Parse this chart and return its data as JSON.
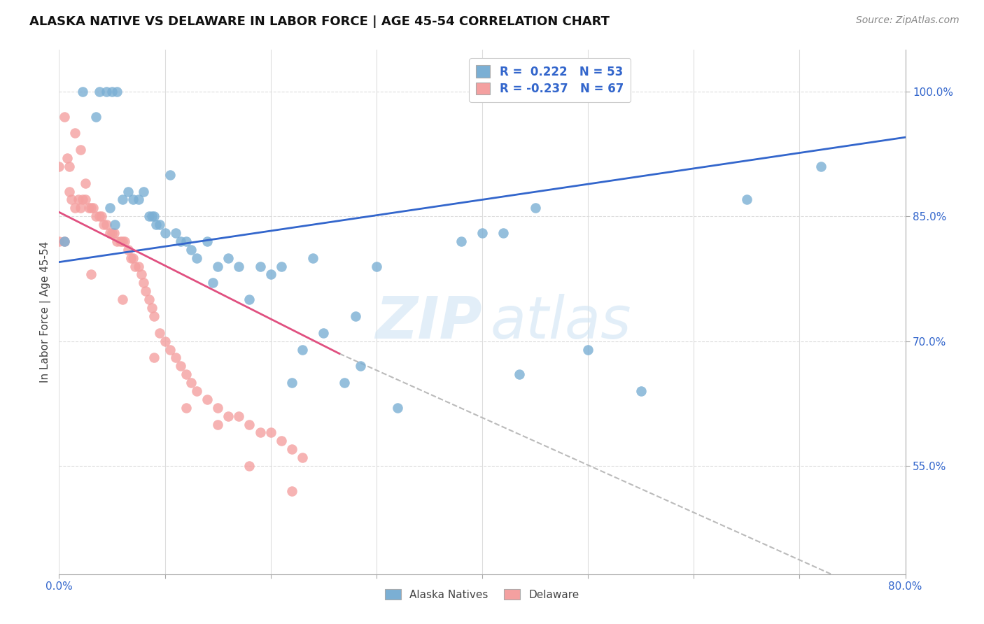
{
  "title": "ALASKA NATIVE VS DELAWARE IN LABOR FORCE | AGE 45-54 CORRELATION CHART",
  "source": "Source: ZipAtlas.com",
  "ylabel": "In Labor Force | Age 45-54",
  "xlim": [
    0.0,
    0.8
  ],
  "ylim": [
    0.42,
    1.05
  ],
  "xticks": [
    0.0,
    0.1,
    0.2,
    0.3,
    0.4,
    0.5,
    0.6,
    0.7,
    0.8
  ],
  "xticklabels": [
    "0.0%",
    "",
    "",
    "",
    "",
    "",
    "",
    "",
    "80.0%"
  ],
  "ytick_positions": [
    0.55,
    0.7,
    0.85,
    1.0
  ],
  "yticklabels_right": [
    "55.0%",
    "70.0%",
    "85.0%",
    "100.0%"
  ],
  "legend_blue_rval": "0.222",
  "legend_blue_nval": "53",
  "legend_pink_rval": "-0.237",
  "legend_pink_nval": "67",
  "blue_color": "#7BAFD4",
  "pink_color": "#F4A0A0",
  "trendline_blue_color": "#3366CC",
  "trendline_pink_color": "#E05080",
  "trendline_dashed_color": "#BBBBBB",
  "blue_trendline": [
    [
      0.0,
      0.795
    ],
    [
      0.8,
      0.945
    ]
  ],
  "pink_trendline": [
    [
      0.0,
      0.855
    ],
    [
      0.265,
      0.685
    ]
  ],
  "dashed_line": [
    [
      0.265,
      0.685
    ],
    [
      0.8,
      0.38
    ]
  ],
  "blue_dots_x": [
    0.005,
    0.022,
    0.038,
    0.045,
    0.05,
    0.055,
    0.06,
    0.065,
    0.07,
    0.075,
    0.08,
    0.085,
    0.088,
    0.09,
    0.095,
    0.1,
    0.105,
    0.11,
    0.115,
    0.12,
    0.125,
    0.13,
    0.14,
    0.15,
    0.16,
    0.17,
    0.18,
    0.19,
    0.2,
    0.21,
    0.22,
    0.23,
    0.24,
    0.25,
    0.27,
    0.28,
    0.3,
    0.32,
    0.38,
    0.4,
    0.42,
    0.45,
    0.5,
    0.55,
    0.65,
    0.72,
    0.035,
    0.048,
    0.053,
    0.092,
    0.145,
    0.285,
    0.435
  ],
  "blue_dots_y": [
    0.82,
    1.0,
    1.0,
    1.0,
    1.0,
    1.0,
    0.87,
    0.88,
    0.87,
    0.87,
    0.88,
    0.85,
    0.85,
    0.85,
    0.84,
    0.83,
    0.9,
    0.83,
    0.82,
    0.82,
    0.81,
    0.8,
    0.82,
    0.79,
    0.8,
    0.79,
    0.75,
    0.79,
    0.78,
    0.79,
    0.65,
    0.69,
    0.8,
    0.71,
    0.65,
    0.73,
    0.79,
    0.62,
    0.82,
    0.83,
    0.83,
    0.86,
    0.69,
    0.64,
    0.87,
    0.91,
    0.97,
    0.86,
    0.84,
    0.84,
    0.77,
    0.67,
    0.66
  ],
  "pink_dots_x": [
    0.005,
    0.008,
    0.01,
    0.012,
    0.015,
    0.018,
    0.02,
    0.022,
    0.025,
    0.028,
    0.03,
    0.032,
    0.035,
    0.038,
    0.04,
    0.042,
    0.045,
    0.048,
    0.05,
    0.052,
    0.055,
    0.058,
    0.06,
    0.062,
    0.065,
    0.068,
    0.07,
    0.072,
    0.075,
    0.078,
    0.08,
    0.082,
    0.085,
    0.088,
    0.09,
    0.095,
    0.1,
    0.105,
    0.11,
    0.115,
    0.12,
    0.125,
    0.13,
    0.14,
    0.15,
    0.16,
    0.17,
    0.18,
    0.19,
    0.2,
    0.21,
    0.22,
    0.23,
    0.005,
    0.01,
    0.015,
    0.02,
    0.025,
    0.03,
    0.06,
    0.09,
    0.12,
    0.15,
    0.18,
    0.22,
    0.0,
    0.0
  ],
  "pink_dots_y": [
    0.97,
    0.92,
    0.88,
    0.87,
    0.86,
    0.87,
    0.86,
    0.87,
    0.87,
    0.86,
    0.86,
    0.86,
    0.85,
    0.85,
    0.85,
    0.84,
    0.84,
    0.83,
    0.83,
    0.83,
    0.82,
    0.82,
    0.82,
    0.82,
    0.81,
    0.8,
    0.8,
    0.79,
    0.79,
    0.78,
    0.77,
    0.76,
    0.75,
    0.74,
    0.73,
    0.71,
    0.7,
    0.69,
    0.68,
    0.67,
    0.66,
    0.65,
    0.64,
    0.63,
    0.62,
    0.61,
    0.61,
    0.6,
    0.59,
    0.59,
    0.58,
    0.57,
    0.56,
    0.82,
    0.91,
    0.95,
    0.93,
    0.89,
    0.78,
    0.75,
    0.68,
    0.62,
    0.6,
    0.55,
    0.52,
    0.82,
    0.91
  ]
}
